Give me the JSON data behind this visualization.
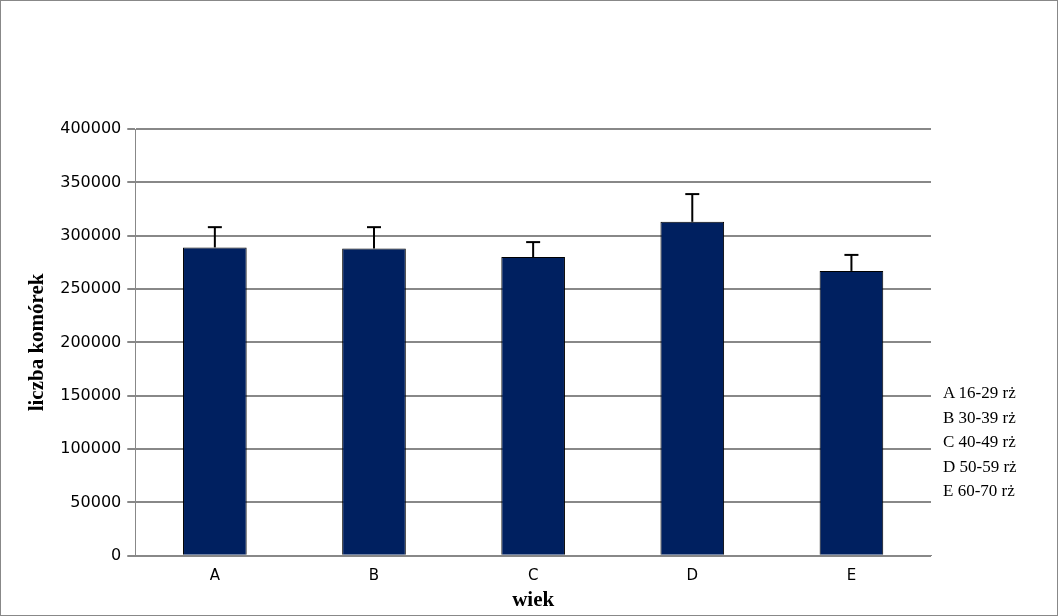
{
  "chart_data": {
    "type": "bar",
    "xlabel": "wiek",
    "ylabel": "liczba komórek",
    "categories": [
      "A",
      "B",
      "C",
      "D",
      "E"
    ],
    "values": [
      289000,
      288000,
      280000,
      313000,
      267000
    ],
    "errors": [
      [
        289000,
        308000
      ],
      [
        288000,
        308000
      ],
      [
        280000,
        294000
      ],
      [
        313000,
        339000
      ],
      [
        267000,
        282000
      ]
    ],
    "color": "#002060",
    "ylim": [
      0,
      400000
    ],
    "yticks": [
      0,
      50000,
      100000,
      150000,
      200000,
      250000,
      300000,
      350000,
      400000
    ],
    "grid": "y",
    "legend": false,
    "annotations": [
      "A 16-29 rż",
      "B 30-39 rż",
      "C 40-49 rż",
      "D 50-59 rż",
      "E 60-70 rż"
    ]
  }
}
